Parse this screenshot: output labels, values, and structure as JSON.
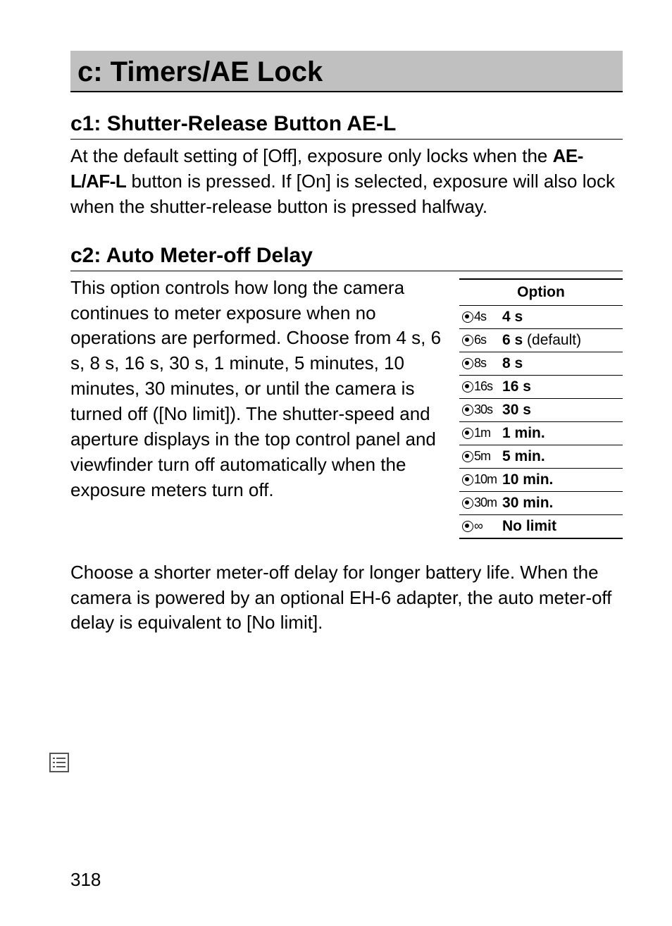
{
  "section_title": "c: Timers/AE Lock",
  "c1": {
    "heading": "c1: Shutter-Release Button AE-L",
    "p_pre": "At the default setting of [Off], exposure only locks when the ",
    "ael_afl": "AE-L/AF-L",
    "p_post": " button is pressed.  If [On] is selected, exposure will also lock when the shutter-release button is pressed halfway."
  },
  "c2": {
    "heading": "c2: Auto Meter-off Delay",
    "p1": "This option controls how long the camera continues to meter exposure when no operations are performed. Choose from 4 s, 6 s, 8 s, 16 s, 30 s, 1 minute, 5 minutes, 10 minutes, 30 minutes, or until the camera is turned off ([No limit]).  The shutter-speed and aperture displays in the top control panel and viewfinder turn off automatically when the exposure meters turn off.",
    "p2": "Choose a shorter meter-off delay for longer battery life.  When the camera is powered by an optional EH-6 adapter, the auto meter-off delay is equivalent to [No limit].",
    "table_header": "Option",
    "options": [
      {
        "code": "4s",
        "label": "4 s",
        "suffix": ""
      },
      {
        "code": "6s",
        "label": "6 s",
        "suffix": " (default)"
      },
      {
        "code": "8s",
        "label": "8 s",
        "suffix": ""
      },
      {
        "code": "16s",
        "label": "16 s",
        "suffix": ""
      },
      {
        "code": "30s",
        "label": "30 s",
        "suffix": ""
      },
      {
        "code": "1m",
        "label": "1 min.",
        "suffix": ""
      },
      {
        "code": "5m",
        "label": "5 min.",
        "suffix": ""
      },
      {
        "code": "10m",
        "label": "10 min.",
        "suffix": ""
      },
      {
        "code": "30m",
        "label": "30 min.",
        "suffix": ""
      },
      {
        "code": "∞",
        "label": "No limit",
        "suffix": ""
      }
    ]
  },
  "page_number": "318",
  "colors": {
    "section_bg": "#c0c0c0",
    "text": "#000000",
    "page_bg": "#ffffff"
  }
}
